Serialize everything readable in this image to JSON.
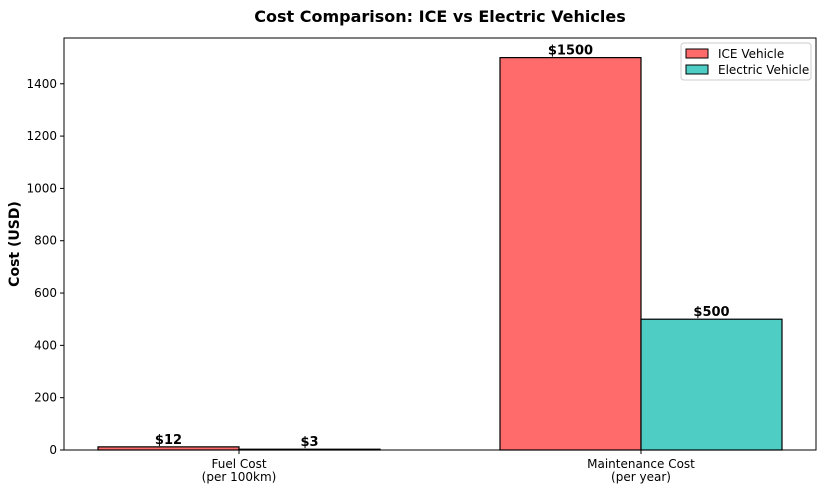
{
  "chart_data": {
    "type": "bar",
    "title": "Cost Comparison: ICE vs Electric Vehicles",
    "xlabel": "",
    "ylabel": "Cost (USD)",
    "categories": [
      "Fuel Cost\n(per 100km)",
      "Maintenance Cost\n(per year)"
    ],
    "series": [
      {
        "name": "ICE Vehicle",
        "values": [
          12,
          1500
        ],
        "color": "#FF6B6B",
        "labels": [
          "$12",
          "$1500"
        ]
      },
      {
        "name": "Electric Vehicle",
        "values": [
          3,
          500
        ],
        "color": "#4ECDC4",
        "labels": [
          "$3",
          "$500"
        ]
      }
    ],
    "ylim": [
      0,
      1575
    ],
    "yticks": [
      0,
      200,
      400,
      600,
      800,
      1000,
      1200,
      1400
    ],
    "grid": false,
    "legend": "top-right"
  }
}
